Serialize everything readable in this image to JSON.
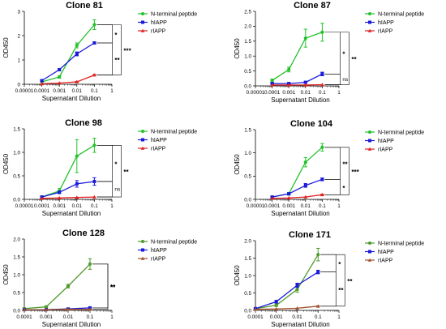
{
  "chart_data": [
    {
      "type": "line",
      "title": "Clone 81",
      "xlabel": "Supernatant Dilution",
      "ylabel": "OD450",
      "xscale": "log",
      "x": [
        0.0001,
        0.001,
        0.01,
        0.1
      ],
      "xticks": [
        "0.00001",
        "0.0001",
        "0.001",
        "0.01",
        "0.1",
        "1"
      ],
      "ylim": [
        0,
        3
      ],
      "yticks": [
        "0",
        "1",
        "2",
        "3"
      ],
      "legend_position": "right",
      "series": [
        {
          "name": "N-terminal peptide",
          "color": "#22c22a",
          "marker": "circle",
          "values": [
            0.1,
            0.3,
            1.6,
            2.45
          ],
          "errors": [
            0.03,
            0.05,
            0.1,
            0.2
          ]
        },
        {
          "name": "hIAPP",
          "color": "#1a1adb",
          "marker": "square",
          "values": [
            0.15,
            0.6,
            1.25,
            1.7
          ],
          "errors": [
            0.03,
            0.05,
            0.08,
            0.05
          ]
        },
        {
          "name": "rIAPP",
          "color": "#e02020",
          "marker": "triangle",
          "values": [
            0.02,
            0.05,
            0.1,
            0.38
          ],
          "errors": [
            0,
            0,
            0.02,
            0.03
          ]
        }
      ],
      "brackets": [
        {
          "between": [
            "N-terminal peptide",
            "hIAPP"
          ],
          "label": "*"
        },
        {
          "between": [
            "hIAPP",
            "rIAPP"
          ],
          "label": "**"
        },
        {
          "between": [
            "N-terminal peptide",
            "rIAPP"
          ],
          "label": "***"
        }
      ]
    },
    {
      "type": "line",
      "title": "Clone 87",
      "xlabel": "Supernatant Dilution",
      "ylabel": "OD450",
      "xscale": "log",
      "x": [
        0.0001,
        0.001,
        0.01,
        0.1
      ],
      "xticks": [
        "0.00001",
        "0.0001",
        "0.001",
        "0.01",
        "0.1",
        "1"
      ],
      "ylim": [
        0,
        2.5
      ],
      "yticks": [
        "0.0",
        "0.5",
        "1.0",
        "1.5",
        "2.0",
        "2.5"
      ],
      "legend_position": "right",
      "series": [
        {
          "name": "N-terminal peptide",
          "color": "#22c22a",
          "marker": "circle",
          "values": [
            0.18,
            0.55,
            1.6,
            1.8
          ],
          "errors": [
            0.05,
            0.08,
            0.3,
            0.3
          ]
        },
        {
          "name": "hIAPP",
          "color": "#1a1adb",
          "marker": "square",
          "values": [
            0.08,
            0.08,
            0.12,
            0.4
          ],
          "errors": [
            0.02,
            0.02,
            0.03,
            0.06
          ]
        },
        {
          "name": "rIAPP",
          "color": "#e02020",
          "marker": "triangle",
          "values": [
            0.03,
            0.03,
            0.03,
            0.04
          ],
          "errors": [
            0,
            0,
            0,
            0
          ]
        }
      ],
      "brackets": [
        {
          "between": [
            "N-terminal peptide",
            "hIAPP"
          ],
          "label": "*"
        },
        {
          "between": [
            "hIAPP",
            "rIAPP"
          ],
          "label": "ns"
        },
        {
          "between": [
            "N-terminal peptide",
            "rIAPP"
          ],
          "label": "**"
        }
      ]
    },
    {
      "type": "line",
      "title": "Clone 98",
      "xlabel": "Supernatant Dilution",
      "ylabel": "OD450",
      "xscale": "log",
      "x": [
        0.0001,
        0.001,
        0.01,
        0.1
      ],
      "xticks": [
        "0.00001",
        "0.0001",
        "0.001",
        "0.01",
        "0.1",
        "1"
      ],
      "ylim": [
        0,
        1.5
      ],
      "yticks": [
        "0.0",
        "0.5",
        "1.0",
        "1.5"
      ],
      "legend_position": "right",
      "series": [
        {
          "name": "N-terminal peptide",
          "color": "#22c22a",
          "marker": "circle",
          "values": [
            0.05,
            0.18,
            0.92,
            1.15
          ],
          "errors": [
            0.02,
            0.05,
            0.35,
            0.15
          ]
        },
        {
          "name": "hIAPP",
          "color": "#1a1adb",
          "marker": "square",
          "values": [
            0.05,
            0.15,
            0.33,
            0.38
          ],
          "errors": [
            0.02,
            0.03,
            0.07,
            0.08
          ]
        },
        {
          "name": "rIAPP",
          "color": "#e02020",
          "marker": "triangle",
          "values": [
            0.02,
            0.03,
            0.04,
            0.05
          ],
          "errors": [
            0,
            0,
            0,
            0
          ]
        }
      ],
      "brackets": [
        {
          "between": [
            "N-terminal peptide",
            "hIAPP"
          ],
          "label": "*"
        },
        {
          "between": [
            "hIAPP",
            "rIAPP"
          ],
          "label": "ns"
        },
        {
          "between": [
            "N-terminal peptide",
            "rIAPP"
          ],
          "label": "**"
        }
      ]
    },
    {
      "type": "line",
      "title": "Clone 104",
      "xlabel": "Supernatant Dilution",
      "ylabel": "OD450",
      "xscale": "log",
      "x": [
        0.0001,
        0.001,
        0.01,
        0.1
      ],
      "xticks": [
        "0.00001",
        "0.0001",
        "0.001",
        "0.01",
        "0.1",
        "1"
      ],
      "ylim": [
        0,
        1.5
      ],
      "yticks": [
        "0.0",
        "0.5",
        "1.0",
        "1.5"
      ],
      "legend_position": "right",
      "series": [
        {
          "name": "N-terminal peptide",
          "color": "#22c22a",
          "marker": "circle",
          "values": [
            0.05,
            0.12,
            0.8,
            1.12
          ],
          "errors": [
            0.02,
            0.03,
            0.1,
            0.08
          ]
        },
        {
          "name": "hIAPP",
          "color": "#1a1adb",
          "marker": "square",
          "values": [
            0.05,
            0.12,
            0.3,
            0.43
          ],
          "errors": [
            0.02,
            0.02,
            0.04,
            0.03
          ]
        },
        {
          "name": "rIAPP",
          "color": "#e02020",
          "marker": "triangle",
          "values": [
            0.02,
            0.03,
            0.05,
            0.1
          ],
          "errors": [
            0,
            0,
            0,
            0.01
          ]
        }
      ],
      "brackets": [
        {
          "between": [
            "N-terminal peptide",
            "hIAPP"
          ],
          "label": "**"
        },
        {
          "between": [
            "hIAPP",
            "rIAPP"
          ],
          "label": "*"
        },
        {
          "between": [
            "N-terminal peptide",
            "rIAPP"
          ],
          "label": "***"
        }
      ]
    },
    {
      "type": "line",
      "title": "Clone 128",
      "xlabel": "Supernatant Dilution",
      "ylabel": "OD450",
      "xscale": "log",
      "x": [
        0.0001,
        0.001,
        0.01,
        0.1
      ],
      "xticks": [
        "0.0001",
        "0.001",
        "0.01",
        "0.1",
        "1"
      ],
      "ylim": [
        0,
        2.0
      ],
      "yticks": [
        "0.0",
        "0.5",
        "1.0",
        "1.5",
        "2.0"
      ],
      "legend_position": "right",
      "series": [
        {
          "name": "N-terminal peptide",
          "color": "#4e9a2c",
          "marker": "circle",
          "values": [
            0.05,
            0.1,
            0.68,
            1.3
          ],
          "errors": [
            0.02,
            0.02,
            0.05,
            0.15
          ]
        },
        {
          "name": "hIAPP",
          "color": "#1a1adb",
          "marker": "square",
          "values": [
            0.02,
            0.02,
            0.04,
            0.07
          ],
          "errors": [
            0,
            0,
            0.01,
            0.02
          ]
        },
        {
          "name": "rIAPP",
          "color": "#a0522d",
          "marker": "triangle",
          "values": [
            0.02,
            0.02,
            0.03,
            0.03
          ],
          "errors": [
            0,
            0,
            0,
            0
          ]
        }
      ],
      "brackets": [
        {
          "between": [
            "N-terminal peptide",
            "hIAPP"
          ],
          "label": "**"
        },
        {
          "between": [
            "N-terminal peptide",
            "rIAPP"
          ],
          "label": "**"
        }
      ]
    },
    {
      "type": "line",
      "title": "Clone 171",
      "xlabel": "Supernatant Dilution",
      "ylabel": "OD450",
      "xscale": "log",
      "x": [
        0.0001,
        0.001,
        0.01,
        0.1
      ],
      "xticks": [
        "0.0001",
        "0.001",
        "0.01",
        "0.1",
        "1"
      ],
      "ylim": [
        0,
        2.0
      ],
      "yticks": [
        "0.0",
        "0.5",
        "1.0",
        "1.5",
        "2.0"
      ],
      "legend_position": "right",
      "series": [
        {
          "name": "N-terminal peptide",
          "color": "#4e9a2c",
          "marker": "circle",
          "values": [
            0.05,
            0.15,
            0.6,
            1.6
          ],
          "errors": [
            0.02,
            0.04,
            0.08,
            0.18
          ]
        },
        {
          "name": "hIAPP",
          "color": "#1a1adb",
          "marker": "square",
          "values": [
            0.05,
            0.25,
            0.72,
            1.1
          ],
          "errors": [
            0.02,
            0.04,
            0.06,
            0.05
          ]
        },
        {
          "name": "rIAPP",
          "color": "#a0522d",
          "marker": "triangle",
          "values": [
            0.03,
            0.04,
            0.06,
            0.12
          ],
          "errors": [
            0,
            0,
            0,
            0.01
          ]
        }
      ],
      "brackets": [
        {
          "between": [
            "N-terminal peptide",
            "hIAPP"
          ],
          "label": "*"
        },
        {
          "between": [
            "hIAPP",
            "rIAPP"
          ],
          "label": "**"
        },
        {
          "between": [
            "N-terminal peptide",
            "rIAPP"
          ],
          "label": "**"
        }
      ]
    }
  ]
}
